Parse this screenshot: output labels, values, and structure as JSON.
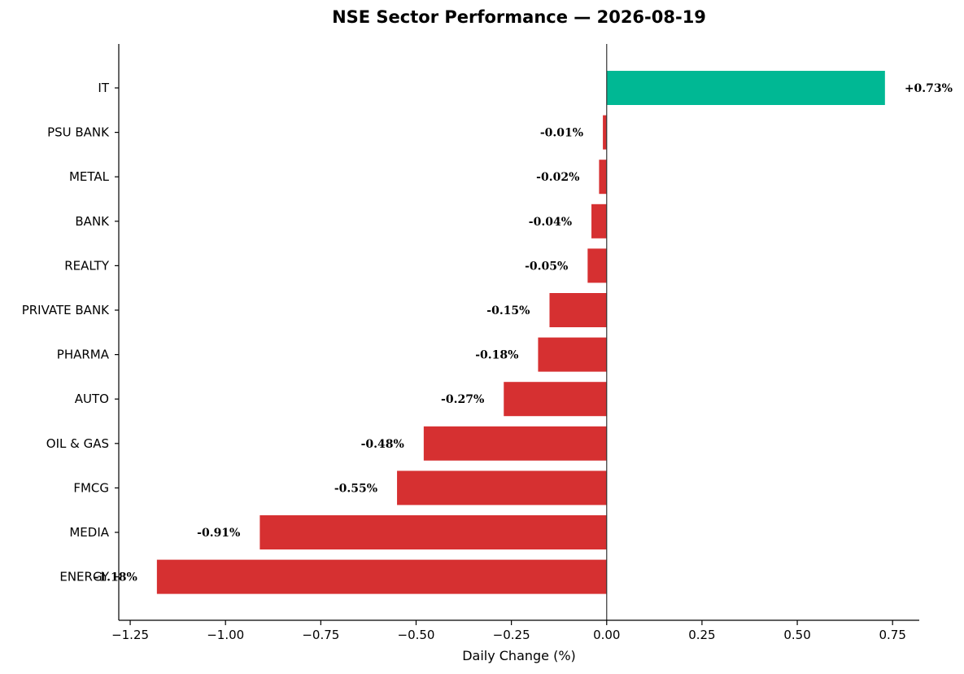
{
  "chart_data": {
    "type": "bar",
    "orientation": "horizontal",
    "title": "NSE Sector Performance — 2026-08-19",
    "xlabel": "Daily Change (%)",
    "ylabel": "",
    "xlim": [
      -1.28,
      0.82
    ],
    "xticks": [
      -1.25,
      -1.0,
      -0.75,
      -0.5,
      -0.25,
      0.0,
      0.25,
      0.5,
      0.75
    ],
    "xtick_labels": [
      "−1.25",
      "−1.00",
      "−0.75",
      "−0.50",
      "−0.25",
      "0.00",
      "0.25",
      "0.50",
      "0.75"
    ],
    "categories": [
      "IT",
      "PSU BANK",
      "METAL",
      "BANK",
      "REALTY",
      "PRIVATE BANK",
      "PHARMA",
      "AUTO",
      "OIL & GAS",
      "FMCG",
      "MEDIA",
      "ENERGY"
    ],
    "values": [
      0.73,
      -0.01,
      -0.02,
      -0.04,
      -0.05,
      -0.15,
      -0.18,
      -0.27,
      -0.48,
      -0.55,
      -0.91,
      -1.18
    ],
    "value_labels": [
      "+0.73%",
      "-0.01%",
      "-0.02%",
      "-0.04%",
      "-0.05%",
      "-0.15%",
      "-0.18%",
      "-0.27%",
      "-0.48%",
      "-0.55%",
      "-0.91%",
      "-1.18%"
    ],
    "colors": {
      "positive": "#00b894",
      "negative": "#d63031"
    },
    "grid": false,
    "legend": "none"
  }
}
